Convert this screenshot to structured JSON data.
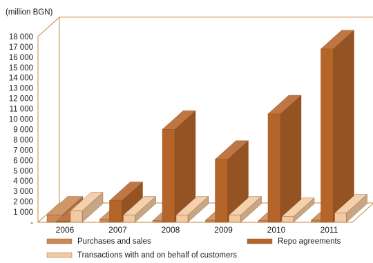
{
  "chart_data": {
    "type": "bar",
    "unit_label": "(million BGN)",
    "categories": [
      "2006",
      "2007",
      "2008",
      "2009",
      "2010",
      "2011"
    ],
    "series": [
      {
        "name": "Purchases and sales",
        "values": [
          700,
          300,
          150,
          200,
          150,
          200
        ],
        "color": "#c98a55"
      },
      {
        "name": "Repo agreements",
        "values": [
          100,
          2100,
          9000,
          6100,
          10500,
          16800
        ],
        "color": "#b5652a"
      },
      {
        "name": "Transactions with and on behalf of customers",
        "values": [
          1100,
          700,
          700,
          700,
          550,
          900
        ],
        "color": "#f2caa2"
      }
    ],
    "y_ticks": [
      "-",
      "1 000",
      "2 000",
      "3 000",
      "4 000",
      "5 000",
      "6 000",
      "7 000",
      "8 000",
      "9 000",
      "10 000",
      "11 000",
      "12 000",
      "13 000",
      "14 000",
      "15 000",
      "16 000",
      "17 000",
      "18 000"
    ],
    "ylim": [
      0,
      18000
    ],
    "grid": false,
    "legend_position": "bottom"
  }
}
